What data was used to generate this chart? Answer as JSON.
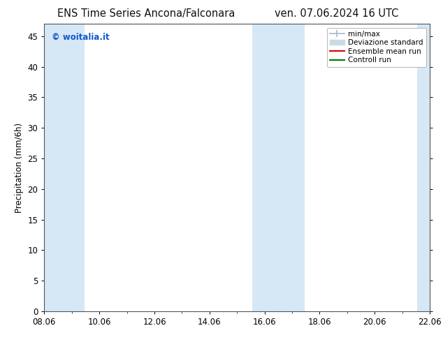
{
  "title_left": "ENS Time Series Ancona/Falconara",
  "title_right": "ven. 07.06.2024 16 UTC",
  "ylabel": "Precipitation (mm/6h)",
  "xlim": [
    0,
    14
  ],
  "ylim": [
    0,
    47
  ],
  "yticks": [
    0,
    5,
    10,
    15,
    20,
    25,
    30,
    35,
    40,
    45
  ],
  "xtick_labels": [
    "08.06",
    "10.06",
    "12.06",
    "14.06",
    "16.06",
    "18.06",
    "20.06",
    "22.06"
  ],
  "xtick_positions": [
    0,
    2,
    4,
    6,
    8,
    10,
    12,
    14
  ],
  "shaded_bands": [
    {
      "x_start": -0.05,
      "x_end": 1.45
    },
    {
      "x_start": 7.55,
      "x_end": 9.45
    },
    {
      "x_start": 13.55,
      "x_end": 14.05
    }
  ],
  "band_color": "#d6e8f5",
  "background_color": "#ffffff",
  "watermark_text": "© woitalia.it",
  "watermark_color": "#1155cc",
  "legend_entries": [
    {
      "label": "min/max",
      "color": "#a8b8c8"
    },
    {
      "label": "Deviazione standard",
      "color": "#c8dce8"
    },
    {
      "label": "Ensemble mean run",
      "color": "#dd0000"
    },
    {
      "label": "Controll run",
      "color": "#007700"
    }
  ],
  "title_fontsize": 10.5,
  "ylabel_fontsize": 8.5,
  "tick_fontsize": 8.5,
  "legend_fontsize": 7.5
}
